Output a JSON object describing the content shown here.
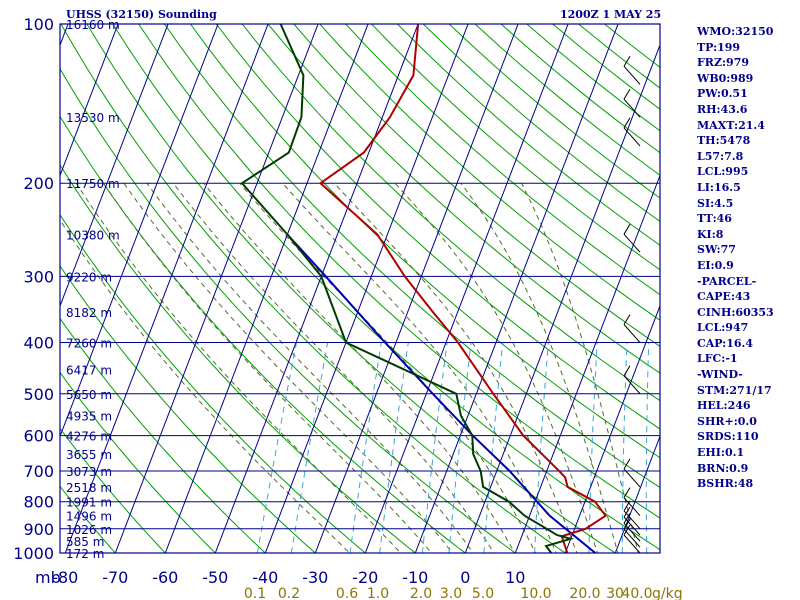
{
  "header": {
    "title": "UHSS (32150) Sounding",
    "time": "1200Z  1 MAY 25"
  },
  "stats": [
    "WMO:32150",
    "TP:199",
    "FRZ:979",
    "WB0:989",
    "PW:0.51",
    "RH:43.6",
    "MAXT:21.4",
    "TH:5478",
    "L57:7.8",
    "LCL:995",
    "LI:16.5",
    "SI:4.5",
    "TT:46",
    "KI:8",
    "SW:77",
    "EI:0.9",
    "-PARCEL-",
    "CAPE:43",
    "CINH:60353",
    "LCL:947",
    "CAP:16.4",
    "LFC:-1",
    "-WIND-",
    "STM:271/17",
    "HEL:246",
    "SHR+:0.0",
    "SRDS:110",
    "EHI:0.1",
    "BRN:0.9",
    "BSHR:48"
  ],
  "colors": {
    "frame": "#00008b",
    "isobar": "#00008b",
    "isotherm": "#00008b",
    "dry_adiabat": "#00a000",
    "moist_adiabat": "#556b2f",
    "mixing_ratio": "#3aa6d8",
    "temperature": "#b00000",
    "dewpoint": "#003b00",
    "parcel": "#0000b0",
    "wind": "#000000"
  },
  "chart_data": {
    "type": "skew-t",
    "pressure_unit": "mb",
    "pressure_ticks": [
      100,
      200,
      300,
      400,
      500,
      600,
      700,
      800,
      900,
      1000
    ],
    "pressure_range": [
      1000,
      100
    ],
    "temperature_ticks": [
      -80,
      -70,
      -60,
      -50,
      -40,
      -30,
      -20,
      -10,
      0,
      10
    ],
    "temperature_tick_labels": [
      "-80",
      "-70",
      "-60",
      "-50",
      "-40",
      "-30",
      "-20",
      "-10",
      "0",
      "10"
    ],
    "mixing_ratio_unit": "g/kg",
    "mixing_ratio_labels": [
      "0.1",
      "0.2",
      "0.6",
      "1.0",
      "2.0",
      "3.0",
      "5.0",
      "10.0",
      "20.0",
      "30",
      "40.0"
    ],
    "height_labels": [
      {
        "p": 100,
        "label": "16160 m"
      },
      {
        "p": 150,
        "label": "13530 m"
      },
      {
        "p": 200,
        "label": "11750 m"
      },
      {
        "p": 250,
        "label": "10380 m"
      },
      {
        "p": 300,
        "label": "9220 m"
      },
      {
        "p": 350,
        "label": "8182 m"
      },
      {
        "p": 400,
        "label": "7260 m"
      },
      {
        "p": 450,
        "label": "6417 m"
      },
      {
        "p": 500,
        "label": "5650 m"
      },
      {
        "p": 550,
        "label": "4935 m"
      },
      {
        "p": 600,
        "label": "4276 m"
      },
      {
        "p": 650,
        "label": "3655 m"
      },
      {
        "p": 700,
        "label": "3073 m"
      },
      {
        "p": 750,
        "label": "2518 m"
      },
      {
        "p": 800,
        "label": "1991 m"
      },
      {
        "p": 850,
        "label": "1496 m"
      },
      {
        "p": 900,
        "label": "1026 m"
      },
      {
        "p": 950,
        "label": "585 m"
      },
      {
        "p": 1000,
        "label": "172 m"
      }
    ],
    "temperature_profile": [
      {
        "p": 1000,
        "t": 20.4
      },
      {
        "p": 970,
        "t": 19.4
      },
      {
        "p": 930,
        "t": 18.0
      },
      {
        "p": 900,
        "t": 22.2
      },
      {
        "p": 850,
        "t": 25.2
      },
      {
        "p": 800,
        "t": 22.0
      },
      {
        "p": 750,
        "t": 15.4
      },
      {
        "p": 720,
        "t": 14.2
      },
      {
        "p": 700,
        "t": 12.5
      },
      {
        "p": 600,
        "t": 2.6
      },
      {
        "p": 500,
        "t": -6.6
      },
      {
        "p": 400,
        "t": -17.6
      },
      {
        "p": 350,
        "t": -25.0
      },
      {
        "p": 300,
        "t": -33.3
      },
      {
        "p": 250,
        "t": -42.0
      },
      {
        "p": 200,
        "t": -57.3
      },
      {
        "p": 175,
        "t": -51.0
      },
      {
        "p": 150,
        "t": -48.5
      },
      {
        "p": 125,
        "t": -47.0
      },
      {
        "p": 100,
        "t": -50.0
      }
    ],
    "dewpoint_profile": [
      {
        "p": 1000,
        "td": 17.2
      },
      {
        "p": 970,
        "td": 15.6
      },
      {
        "p": 940,
        "td": 20.0
      },
      {
        "p": 925,
        "td": 17.0
      },
      {
        "p": 850,
        "td": 9.0
      },
      {
        "p": 800,
        "td": 4.8
      },
      {
        "p": 750,
        "td": -1.5
      },
      {
        "p": 700,
        "td": -3.2
      },
      {
        "p": 650,
        "td": -6.0
      },
      {
        "p": 600,
        "td": -7.6
      },
      {
        "p": 550,
        "td": -11.4
      },
      {
        "p": 500,
        "td": -14.0
      },
      {
        "p": 400,
        "td": -40.0
      },
      {
        "p": 300,
        "td": -50.0
      },
      {
        "p": 250,
        "td": -60.0
      },
      {
        "p": 200,
        "td": -73.0
      },
      {
        "p": 175,
        "td": -66.0
      },
      {
        "p": 150,
        "td": -66.2
      },
      {
        "p": 125,
        "td": -69.0
      },
      {
        "p": 100,
        "td": -77.5
      }
    ],
    "parcel_profile": [
      {
        "p": 1000,
        "t": 26.0
      },
      {
        "p": 850,
        "t": 14.0
      },
      {
        "p": 700,
        "t": 2.6
      },
      {
        "p": 600,
        "t": -7.5
      },
      {
        "p": 500,
        "t": -18.7
      },
      {
        "p": 400,
        "t": -32.2
      },
      {
        "p": 300,
        "t": -49.1
      },
      {
        "p": 250,
        "t": -60.0
      }
    ],
    "wind_barbs": [
      {
        "p": 1000
      },
      {
        "p": 975
      },
      {
        "p": 950
      },
      {
        "p": 925
      },
      {
        "p": 900
      },
      {
        "p": 850
      },
      {
        "p": 750
      },
      {
        "p": 500
      },
      {
        "p": 400
      },
      {
        "p": 270
      },
      {
        "p": 170
      },
      {
        "p": 150
      },
      {
        "p": 130
      }
    ]
  }
}
